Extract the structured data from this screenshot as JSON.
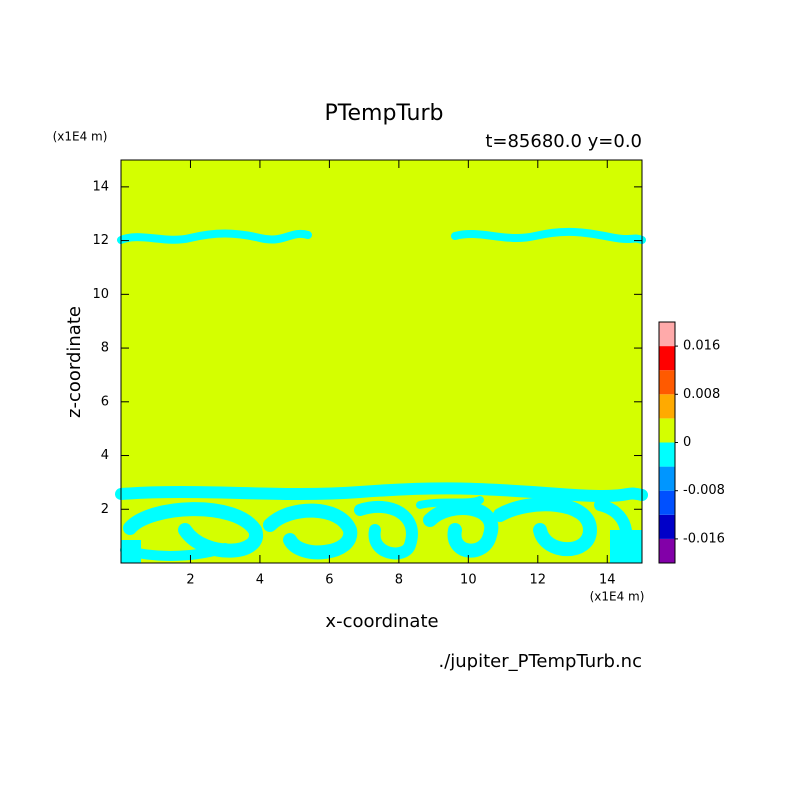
{
  "chart_data": {
    "type": "contour",
    "title": "PTempTurb",
    "subtitle": "t=85680.0 y=0.0",
    "xlabel": "x-coordinate",
    "ylabel": "z-coordinate",
    "xunit": "(x1E4 m)",
    "yunit": "(x1E4 m)",
    "source": "./jupiter_PTempTurb.nc",
    "xlim": [
      0,
      15
    ],
    "xticks": [
      2,
      4,
      6,
      8,
      10,
      12,
      14
    ],
    "ylim": [
      0,
      15
    ],
    "yticks": [
      2,
      4,
      6,
      8,
      10,
      12,
      14
    ],
    "grid": false,
    "clim": [
      -0.02,
      0.02
    ],
    "cticks": [
      0.016,
      0.008,
      0,
      -0.008,
      -0.016
    ],
    "colors": [
      "#8200a8",
      "#0000c8",
      "#0050ff",
      "#0096ff",
      "#00ffff",
      "#d4ff00",
      "#ffaa00",
      "#ff5a00",
      "#ff0000",
      "#ffaaaa"
    ]
  }
}
